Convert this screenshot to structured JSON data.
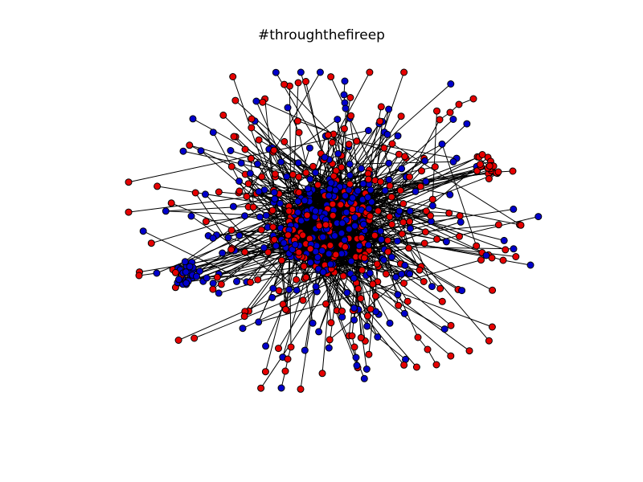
{
  "figure": {
    "title": "#throughthefireep"
  },
  "graph": {
    "node_colors": {
      "group_a": "#e60000",
      "group_b": "#0000cc"
    },
    "node_outline_color": "#000000",
    "edge_color": "#000000",
    "background_color": "#ffffff"
  }
}
